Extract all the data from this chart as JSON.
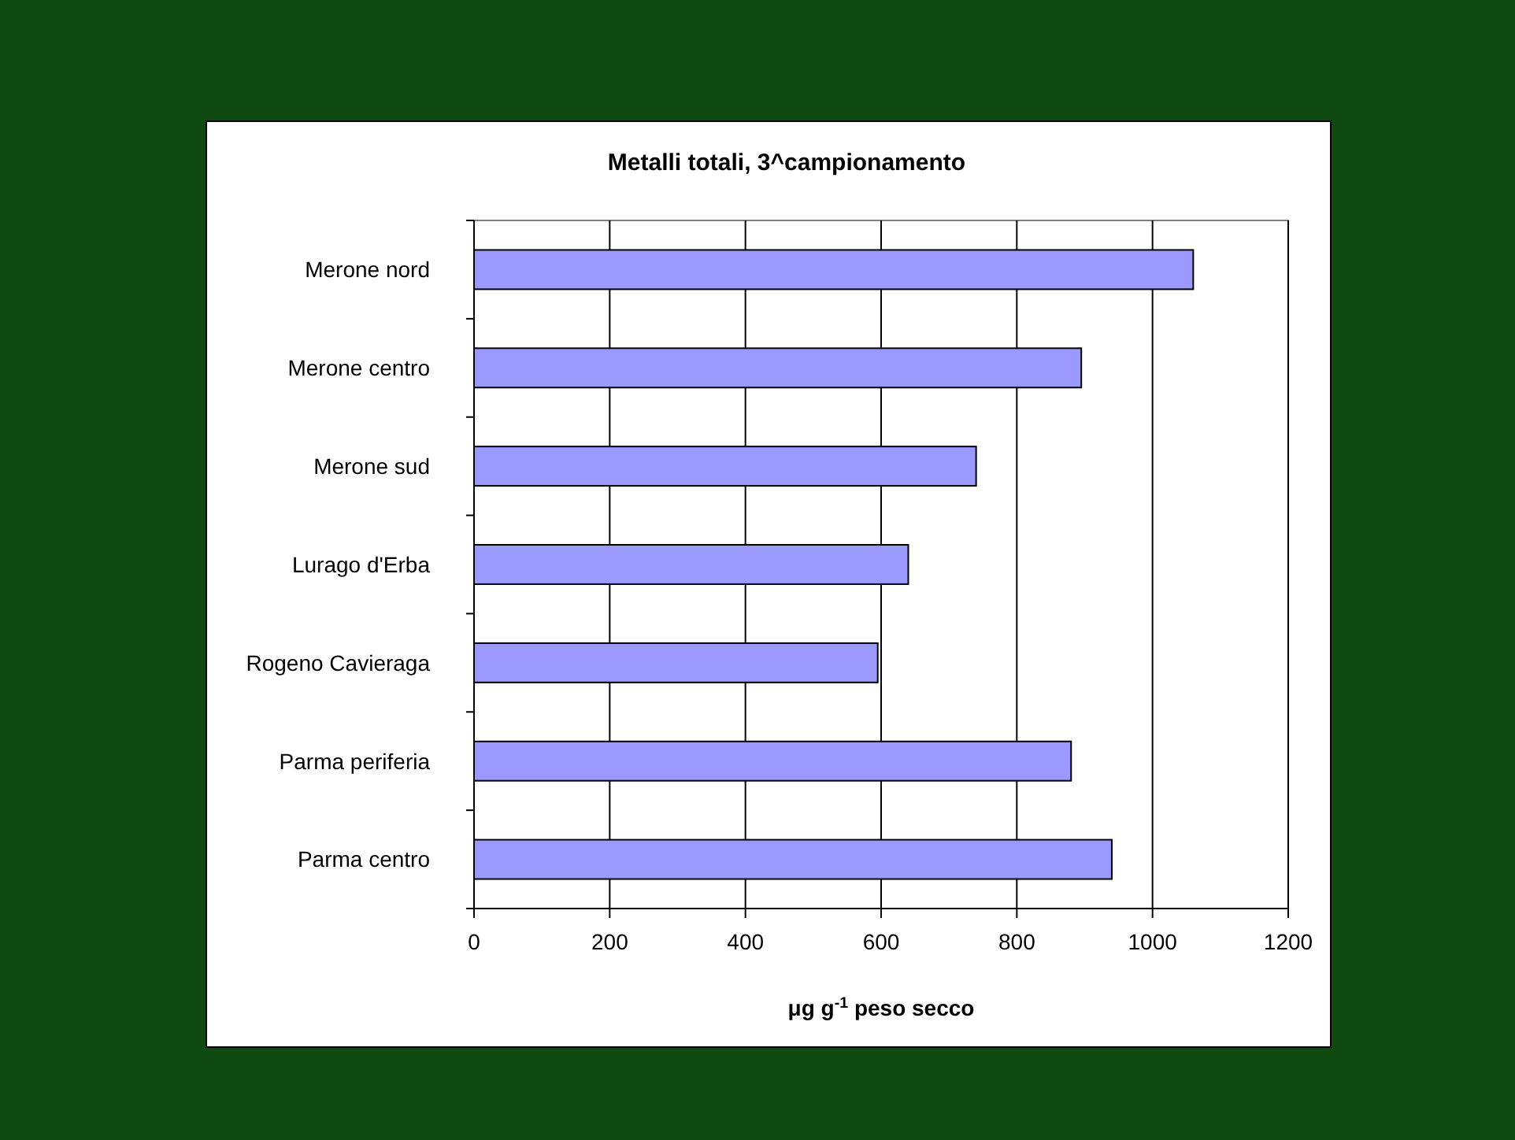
{
  "chart_data": {
    "type": "bar",
    "orientation": "horizontal",
    "title": "Metalli totali, 3^campionamento",
    "xlabel": "μg g$^{-1}$ peso secco",
    "categories": [
      "Merone nord",
      "Merone centro",
      "Merone sud",
      "Lurago d'Erba",
      "Rogeno Cavieraga",
      "Parma periferia",
      "Parma centro"
    ],
    "values": [
      1060,
      895,
      740,
      640,
      595,
      880,
      940
    ],
    "color": "#9999ff",
    "xlim": [
      0,
      1200
    ],
    "xticks": [
      0,
      200,
      400,
      600,
      800,
      1000,
      1200
    ],
    "grid": "x"
  }
}
